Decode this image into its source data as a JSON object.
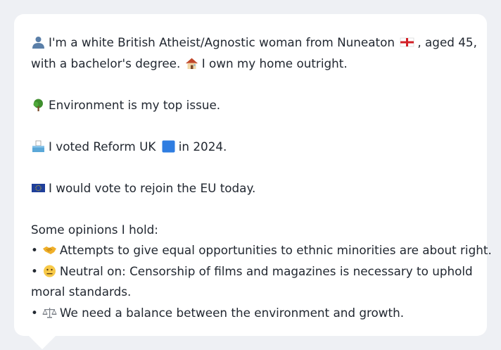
{
  "persona": {
    "intro_line1": "I'm a white British Atheist/Agnostic woman from Nuneaton",
    "intro_line1_tail": ", aged 45,",
    "intro_line2": "with a bachelor's degree.",
    "intro_line2_tail": "I own my home outright.",
    "top_issue": "Environment is my top issue.",
    "vote_pre": "I voted Reform UK",
    "vote_post": "in 2024.",
    "eu": "I would vote to rejoin the EU today.",
    "opinions_heading": "Some opinions I hold:",
    "opinions": [
      {
        "bullet": "•",
        "text": "Attempts to give equal opportunities to ethnic minorities are about right."
      },
      {
        "bullet": "•",
        "text": "Neutral on: Censorship of films and magazines is necessary to uphold"
      },
      {
        "text_cont": "moral standards."
      },
      {
        "bullet": "•",
        "text": "We need a balance between the environment and growth."
      }
    ]
  },
  "icons": {
    "person": "person-silhouette-icon",
    "flag": "england-flag-icon",
    "house": "house-icon",
    "tree": "tree-icon",
    "ballot": "ballot-box-icon",
    "party_color": "#2f7de1",
    "eu_flag": "eu-flag-icon",
    "handshake": "handshake-icon",
    "neutral": "neutral-face-icon",
    "scales": "balance-scale-icon"
  }
}
